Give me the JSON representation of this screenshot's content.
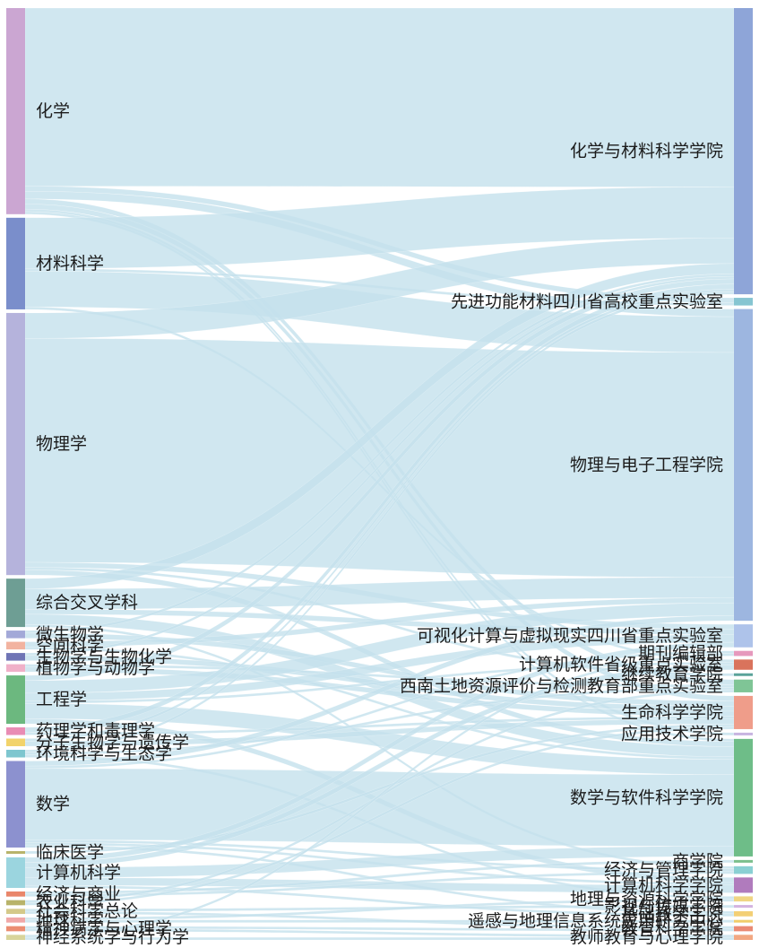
{
  "chart_data": {
    "type": "sankey",
    "left_nodes": [
      {
        "id": "chem",
        "label": "化学",
        "color": "#cba6d2"
      },
      {
        "id": "mat",
        "label": "材料科学",
        "color": "#7a8ecb"
      },
      {
        "id": "phys",
        "label": "物理学",
        "color": "#b5b3dc"
      },
      {
        "id": "inter",
        "label": "综合交叉学科",
        "color": "#6e9e94"
      },
      {
        "id": "micro",
        "label": "微生物学",
        "color": "#a3a9d8"
      },
      {
        "id": "space",
        "label": "空间科学",
        "color": "#f2b3a0"
      },
      {
        "id": "biochem",
        "label": "生物学与生物化学",
        "color": "#6f74b5"
      },
      {
        "id": "plant",
        "label": "植物学与动物学",
        "color": "#f0b0c8"
      },
      {
        "id": "eng",
        "label": "工程学",
        "color": "#6cb87f"
      },
      {
        "id": "pharm",
        "label": "药理学和毒理学",
        "color": "#e98cb4"
      },
      {
        "id": "molbio",
        "label": "分子生物学与遗传学",
        "color": "#f2d36b"
      },
      {
        "id": "env",
        "label": "环境科学与生态学",
        "color": "#7ec6cf"
      },
      {
        "id": "math",
        "label": "数学",
        "color": "#8c91cf"
      },
      {
        "id": "clin",
        "label": "临床医学",
        "color": "#b7b36a"
      },
      {
        "id": "cs",
        "label": "计算机科学",
        "color": "#9bd5df"
      },
      {
        "id": "econ",
        "label": "经济与商业",
        "color": "#e9866a"
      },
      {
        "id": "agri",
        "label": "农业科学",
        "color": "#b8b36a"
      },
      {
        "id": "soc",
        "label": "社会科学总论",
        "color": "#d4c98a"
      },
      {
        "id": "geo",
        "label": "地球科学",
        "color": "#f0a8a8"
      },
      {
        "id": "psych",
        "label": "精神病学与心理学",
        "color": "#eb8d72"
      },
      {
        "id": "neuro",
        "label": "神经系统学与行为学",
        "color": "#d8d49a"
      }
    ],
    "right_nodes": [
      {
        "id": "r_chem",
        "label": "化学与材料科学学院",
        "color": "#8ea5d8"
      },
      {
        "id": "r_lab1",
        "label": "先进功能材料四川省高校重点实验室",
        "color": "#86c5d1"
      },
      {
        "id": "r_phys",
        "label": "物理与电子工程学院",
        "color": "#9db6e0"
      },
      {
        "id": "r_vis",
        "label": "可视化计算与虚拟现实四川省重点实验室",
        "color": "#aec3ea"
      },
      {
        "id": "r_journal",
        "label": "期刊编辑部",
        "color": "#e699bd"
      },
      {
        "id": "r_softlab",
        "label": "计算机软件省级重点实验室",
        "color": "#d9735c"
      },
      {
        "id": "r_cont",
        "label": "继续教育学院",
        "color": "#5aa39a"
      },
      {
        "id": "r_land",
        "label": "西南土地资源评价与检测教育部重点实验室",
        "color": "#7fc596"
      },
      {
        "id": "r_life",
        "label": "生命科学学院",
        "color": "#ef9d8a"
      },
      {
        "id": "r_appl",
        "label": "应用技术学院",
        "color": "#c7b4e0"
      },
      {
        "id": "r_math",
        "label": "数学与软件科学学院",
        "color": "#6ebd88"
      },
      {
        "id": "r_biz",
        "label": "商学院",
        "color": "#7bbf8c"
      },
      {
        "id": "r_eco",
        "label": "经济与管理学院",
        "color": "#8ad0d3"
      },
      {
        "id": "r_cs",
        "label": "计算机科学学院",
        "color": "#b07bbd"
      },
      {
        "id": "r_geo",
        "label": "地理与资源科学学院",
        "color": "#f0d583"
      },
      {
        "id": "r_film",
        "label": "影视与传媒学院",
        "color": "#d4b4e0"
      },
      {
        "id": "r_basic",
        "label": "基础教学学院",
        "color": "#f3cf75"
      },
      {
        "id": "r_rs",
        "label": "遥感与地理信息系统应用研究中心",
        "color": "#f0cd6a"
      },
      {
        "id": "r_edu",
        "label": "教育科学学院",
        "color": "#ea8a74"
      },
      {
        "id": "r_teach",
        "label": "教师教育与心理学院",
        "color": "#f2a883"
      }
    ],
    "links": [
      {
        "source": "chem",
        "target": "r_chem",
        "value": 70
      },
      {
        "source": "chem",
        "target": "r_lab1",
        "value": 2
      },
      {
        "source": "chem",
        "target": "r_phys",
        "value": 3
      },
      {
        "source": "chem",
        "target": "r_land",
        "value": 2
      },
      {
        "source": "chem",
        "target": "r_life",
        "value": 2
      },
      {
        "source": "chem",
        "target": "r_math",
        "value": 1
      },
      {
        "source": "mat",
        "target": "r_chem",
        "value": 20
      },
      {
        "source": "mat",
        "target": "r_lab1",
        "value": 1
      },
      {
        "source": "mat",
        "target": "r_phys",
        "value": 14
      },
      {
        "source": "mat",
        "target": "r_softlab",
        "value": 1
      },
      {
        "source": "phys",
        "target": "r_chem",
        "value": 10
      },
      {
        "source": "phys",
        "target": "r_phys",
        "value": 88
      },
      {
        "source": "phys",
        "target": "r_vis",
        "value": 2
      },
      {
        "source": "phys",
        "target": "r_math",
        "value": 2
      },
      {
        "source": "inter",
        "target": "r_phys",
        "value": 8
      },
      {
        "source": "inter",
        "target": "r_math",
        "value": 4
      },
      {
        "source": "inter",
        "target": "r_chem",
        "value": 4
      },
      {
        "source": "inter",
        "target": "r_vis",
        "value": 2
      },
      {
        "source": "inter",
        "target": "r_eco",
        "value": 1
      },
      {
        "source": "micro",
        "target": "r_life",
        "value": 2
      },
      {
        "source": "micro",
        "target": "r_chem",
        "value": 1
      },
      {
        "source": "space",
        "target": "r_phys",
        "value": 2
      },
      {
        "source": "space",
        "target": "r_math",
        "value": 1
      },
      {
        "source": "biochem",
        "target": "r_life",
        "value": 2
      },
      {
        "source": "biochem",
        "target": "r_chem",
        "value": 1
      },
      {
        "source": "plant",
        "target": "r_life",
        "value": 2
      },
      {
        "source": "plant",
        "target": "r_land",
        "value": 1
      },
      {
        "source": "eng",
        "target": "r_math",
        "value": 6
      },
      {
        "source": "eng",
        "target": "r_phys",
        "value": 5
      },
      {
        "source": "eng",
        "target": "r_vis",
        "value": 3
      },
      {
        "source": "eng",
        "target": "r_cs",
        "value": 2
      },
      {
        "source": "eng",
        "target": "r_softlab",
        "value": 1
      },
      {
        "source": "eng",
        "target": "r_chem",
        "value": 2
      },
      {
        "source": "pharm",
        "target": "r_chem",
        "value": 2
      },
      {
        "source": "pharm",
        "target": "r_life",
        "value": 1
      },
      {
        "source": "molbio",
        "target": "r_life",
        "value": 2
      },
      {
        "source": "molbio",
        "target": "r_chem",
        "value": 1
      },
      {
        "source": "env",
        "target": "r_land",
        "value": 1
      },
      {
        "source": "env",
        "target": "r_geo",
        "value": 1
      },
      {
        "source": "env",
        "target": "r_chem",
        "value": 1
      },
      {
        "source": "math",
        "target": "r_math",
        "value": 28
      },
      {
        "source": "math",
        "target": "r_phys",
        "value": 2
      },
      {
        "source": "math",
        "target": "r_cs",
        "value": 1
      },
      {
        "source": "math",
        "target": "r_eco",
        "value": 1
      },
      {
        "source": "math",
        "target": "r_basic",
        "value": 1
      },
      {
        "source": "clin",
        "target": "r_life",
        "value": 1
      },
      {
        "source": "cs",
        "target": "r_vis",
        "value": 2
      },
      {
        "source": "cs",
        "target": "r_math",
        "value": 4
      },
      {
        "source": "cs",
        "target": "r_softlab",
        "value": 2
      },
      {
        "source": "cs",
        "target": "r_cs",
        "value": 3
      },
      {
        "source": "econ",
        "target": "r_biz",
        "value": 1
      },
      {
        "source": "econ",
        "target": "r_eco",
        "value": 1
      },
      {
        "source": "agri",
        "target": "r_land",
        "value": 1
      },
      {
        "source": "agri",
        "target": "r_life",
        "value": 1
      },
      {
        "source": "soc",
        "target": "r_edu",
        "value": 1
      },
      {
        "source": "soc",
        "target": "r_film",
        "value": 1
      },
      {
        "source": "geo",
        "target": "r_geo",
        "value": 1
      },
      {
        "source": "geo",
        "target": "r_rs",
        "value": 1
      },
      {
        "source": "psych",
        "target": "r_teach",
        "value": 1
      },
      {
        "source": "psych",
        "target": "r_edu",
        "value": 1
      },
      {
        "source": "neuro",
        "target": "r_teach",
        "value": 1
      },
      {
        "source": "neuro",
        "target": "r_journal",
        "value": 1
      },
      {
        "source": "chem",
        "target": "r_appl",
        "value": 1
      },
      {
        "source": "phys",
        "target": "r_cont",
        "value": 1
      },
      {
        "source": "math",
        "target": "r_journal",
        "value": 1
      },
      {
        "source": "cs",
        "target": "r_basic",
        "value": 1
      }
    ],
    "link_color": "#c4e1ec"
  }
}
